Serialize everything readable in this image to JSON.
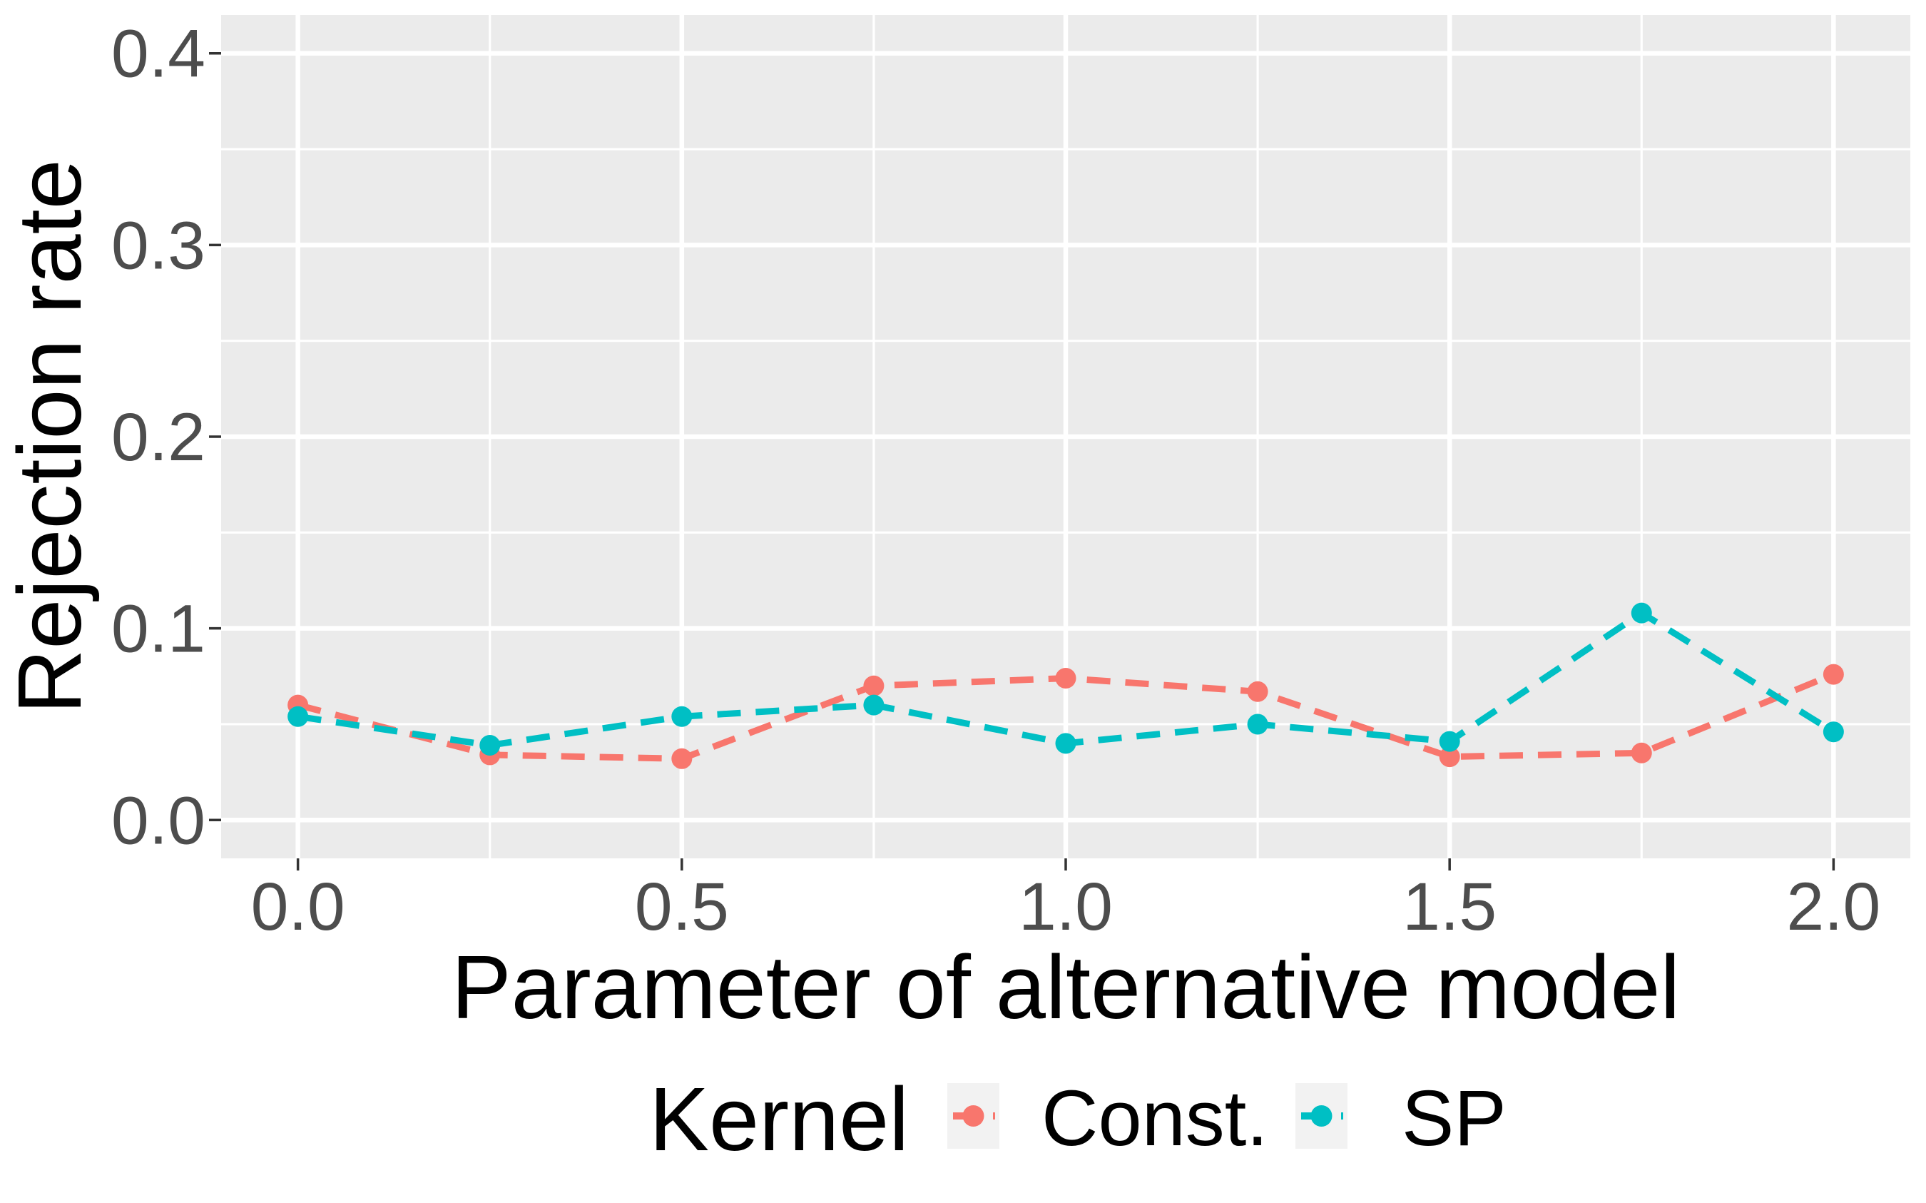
{
  "chart_data": {
    "type": "line",
    "title": "",
    "xlabel": "Parameter of alternative model",
    "ylabel": "Rejection rate",
    "x": [
      0,
      0.25,
      0.5,
      0.75,
      1.0,
      1.25,
      1.5,
      1.75,
      2.0
    ],
    "series": [
      {
        "name": "Const.",
        "color": "#F8766D",
        "values": [
          0.06,
          0.034,
          0.032,
          0.07,
          0.074,
          0.067,
          0.033,
          0.035,
          0.076
        ]
      },
      {
        "name": "SP",
        "color": "#00BFC4",
        "values": [
          0.054,
          0.039,
          0.054,
          0.06,
          0.04,
          0.05,
          0.041,
          0.108,
          0.046
        ]
      }
    ],
    "xlim": [
      -0.1,
      2.1
    ],
    "ylim": [
      -0.02,
      0.42
    ],
    "x_ticks": [
      0.0,
      0.5,
      1.0,
      1.5,
      2.0
    ],
    "x_tick_labels": [
      "0.0",
      "0.5",
      "1.0",
      "1.5",
      "2.0"
    ],
    "y_ticks": [
      0.0,
      0.1,
      0.2,
      0.3,
      0.4
    ],
    "y_tick_labels": [
      "0.0",
      "0.1",
      "0.2",
      "0.3",
      "0.4"
    ],
    "x_minor_breaks": [
      0.25,
      0.75,
      1.25,
      1.75
    ],
    "y_minor_breaks": [
      0.05,
      0.15,
      0.25,
      0.35
    ],
    "line_style": "dashed",
    "marker": "circle",
    "grid": true,
    "legend_position": "bottom",
    "legend_title": "Kernel",
    "colors": {
      "panel_background": "#EBEBEB",
      "grid": "#FFFFFF",
      "tick_marks": "#333333",
      "tick_labels": "#4D4D4D",
      "titles": "#000000",
      "legend_key_background": "#F2F2F2",
      "page_background": "#FFFFFF"
    }
  }
}
